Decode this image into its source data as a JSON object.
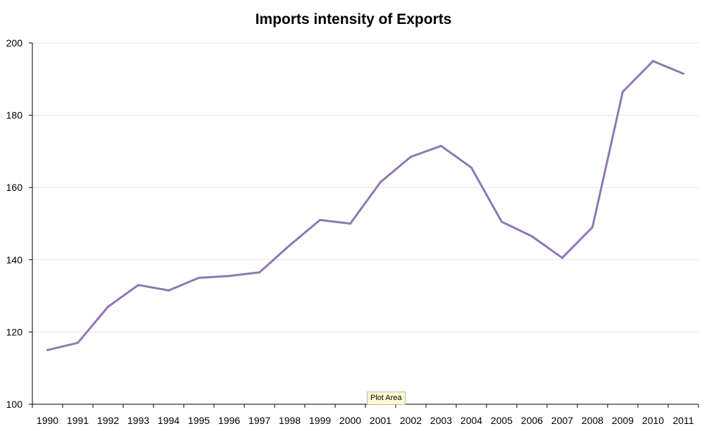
{
  "chart_data": {
    "type": "line",
    "title": "Imports intensity of Exports",
    "xlabel": "",
    "ylabel": "",
    "categories": [
      "1990",
      "1991",
      "1992",
      "1993",
      "1994",
      "1995",
      "1996",
      "1997",
      "1998",
      "1999",
      "2000",
      "2001",
      "2002",
      "2003",
      "2004",
      "2005",
      "2006",
      "2007",
      "2008",
      "2009",
      "2010",
      "2011"
    ],
    "series": [
      {
        "name": "Imports intensity of Exports",
        "color": "#9177b3",
        "values": [
          115,
          117,
          127,
          133,
          131.5,
          135,
          135.5,
          136.5,
          144,
          151,
          150,
          161.5,
          168.5,
          171.5,
          165.5,
          150.5,
          146.5,
          140.5,
          149,
          186.5,
          195,
          191.5
        ]
      }
    ],
    "ylim": [
      100,
      200
    ],
    "yticks": [
      "100",
      "120",
      "140",
      "160",
      "180",
      "200"
    ],
    "grid": true,
    "legend": "none"
  },
  "tooltip": {
    "label": "Plot Area"
  }
}
